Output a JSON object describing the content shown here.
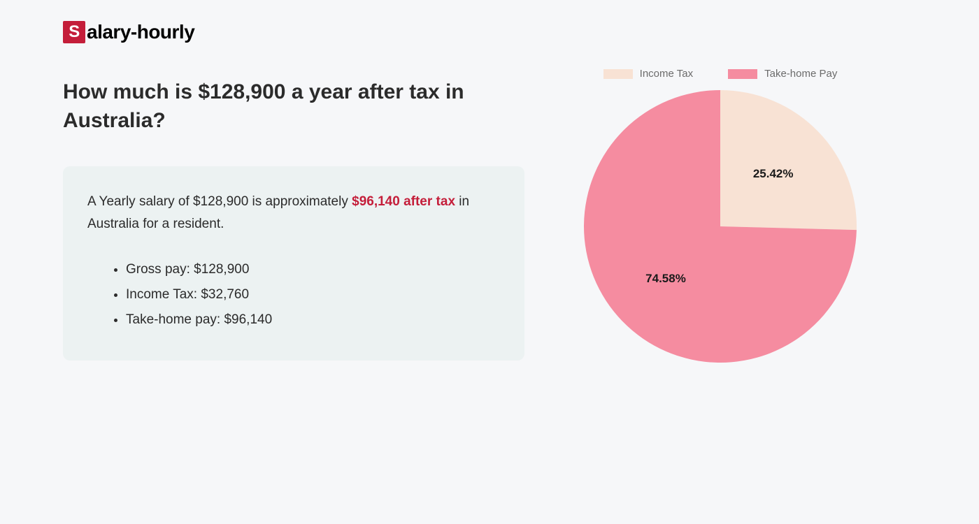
{
  "logo": {
    "box_letter": "S",
    "rest": "alary-hourly"
  },
  "heading": "How much is $128,900 a year after tax in Australia?",
  "summary": {
    "prefix": "A Yearly salary of $128,900 is approximately ",
    "highlight": "$96,140 after tax",
    "suffix": " in Australia for a resident."
  },
  "details": [
    "Gross pay: $128,900",
    "Income Tax: $32,760",
    "Take-home pay: $96,140"
  ],
  "chart": {
    "type": "pie",
    "background_color": "#f6f7f9",
    "radius": 195,
    "slices": [
      {
        "label": "Income Tax",
        "value": 25.42,
        "display": "25.42%",
        "color": "#f8e2d4"
      },
      {
        "label": "Take-home Pay",
        "value": 74.58,
        "display": "74.58%",
        "color": "#f58ca0"
      }
    ],
    "legend": {
      "swatch_width": 42,
      "swatch_height": 14,
      "label_color": "#6b6b6b",
      "label_fontsize": 15
    },
    "percent_label": {
      "fontsize": 17,
      "fontweight": 700,
      "color": "#1a1a1a"
    }
  },
  "colors": {
    "page_bg": "#f6f7f9",
    "logo_box_bg": "#c41e3a",
    "logo_box_fg": "#ffffff",
    "logo_text": "#000000",
    "heading": "#2b2b2b",
    "info_box_bg": "#ecf2f2",
    "body_text": "#2b2b2b",
    "highlight": "#c41e3a"
  }
}
